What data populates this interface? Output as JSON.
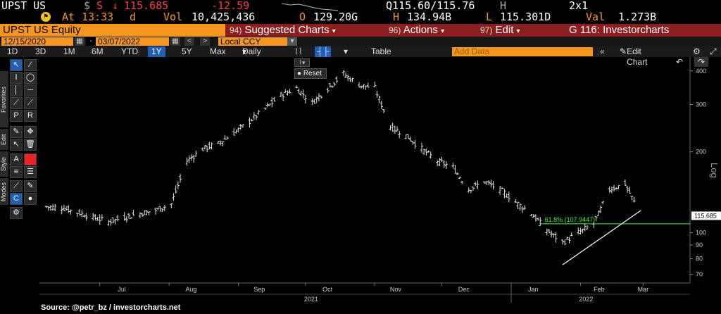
{
  "quote": {
    "ticker": "UPST US",
    "currency": "$",
    "source_code": "S",
    "arrow": "↓",
    "last": "115.685",
    "change": "-12.59",
    "bid_ask": "Q115.60/115.76",
    "bid_ask_suffix": "H",
    "size": "2x1",
    "time_label": "At",
    "time": "13:33",
    "time_suffix": "d",
    "vol_label": "Vol",
    "volume": "10,425,436",
    "open_label": "O",
    "open": "129.20G",
    "high_label": "H",
    "high": "134.94B",
    "low_label": "L",
    "low": "115.301D",
    "val_label": "Val",
    "val": "1.273B"
  },
  "titlebar": {
    "security": "UPST US Equity",
    "menu1_num": "94)",
    "menu1": "Suggested Charts",
    "menu2_num": "96)",
    "menu2": "Actions",
    "menu3_num": "97)",
    "menu3": "Edit",
    "function": "G 116: Investorcharts"
  },
  "daterow": {
    "start_date": "12/15/2020",
    "end_date": "03/07/2022",
    "currency_mode": "Local CCY"
  },
  "periods": {
    "items": [
      "1D",
      "3D",
      "1M",
      "6M",
      "YTD",
      "1Y",
      "5Y",
      "Max"
    ],
    "selected": "1Y",
    "frequency": "Daily",
    "table": "Table",
    "add_data_placeholder": "Add Data",
    "edit_chart": "Edit Chart"
  },
  "toolbar": {
    "favorites": "Favorites",
    "edit": "Edit",
    "style": "Style",
    "modes": "Modes"
  },
  "reset_label": "Reset",
  "source": "Source: @petr_bz / investorcharts.net",
  "colors": {
    "accent_orange": "#f5961e",
    "title_red": "#8b1f1f",
    "price_down": "#ff3b3b",
    "fib_green": "#33ff33",
    "selected_blue": "#1f5fb8"
  },
  "chart_data": {
    "type": "ohlc",
    "scale": "log",
    "ylabel": "Log",
    "ylim": [
      65,
      440
    ],
    "y_ticks": [
      70,
      80,
      90,
      100,
      200,
      300,
      400
    ],
    "month_labels": [
      "Jul",
      "Aug",
      "Sep",
      "Oct",
      "Nov",
      "Dec",
      "Jan",
      "Feb",
      "Mar"
    ],
    "year_labels": [
      {
        "year": "2021",
        "under": "Oct"
      },
      {
        "year": "2022",
        "under": "Feb"
      }
    ],
    "last_price": 115.685,
    "fib_label": "61.8% (107.9447)",
    "fib_level": 107.9447,
    "trendline": {
      "from": {
        "date": "2022-01-24",
        "value": 76
      },
      "to": {
        "date": "2022-02-28",
        "value": 121
      }
    },
    "weekly_closes": [
      {
        "date": "2021-06-07",
        "value": 125
      },
      {
        "date": "2021-06-14",
        "value": 124
      },
      {
        "date": "2021-06-21",
        "value": 119
      },
      {
        "date": "2021-06-28",
        "value": 114
      },
      {
        "date": "2021-07-05",
        "value": 110
      },
      {
        "date": "2021-07-12",
        "value": 114
      },
      {
        "date": "2021-07-19",
        "value": 118
      },
      {
        "date": "2021-07-26",
        "value": 121
      },
      {
        "date": "2021-08-02",
        "value": 128
      },
      {
        "date": "2021-08-09",
        "value": 185
      },
      {
        "date": "2021-08-16",
        "value": 205
      },
      {
        "date": "2021-08-23",
        "value": 215
      },
      {
        "date": "2021-08-30",
        "value": 235
      },
      {
        "date": "2021-09-06",
        "value": 260
      },
      {
        "date": "2021-09-13",
        "value": 290
      },
      {
        "date": "2021-09-20",
        "value": 325
      },
      {
        "date": "2021-09-27",
        "value": 345
      },
      {
        "date": "2021-10-04",
        "value": 305
      },
      {
        "date": "2021-10-11",
        "value": 345
      },
      {
        "date": "2021-10-18",
        "value": 390
      },
      {
        "date": "2021-10-25",
        "value": 355
      },
      {
        "date": "2021-11-01",
        "value": 345
      },
      {
        "date": "2021-11-08",
        "value": 248
      },
      {
        "date": "2021-11-15",
        "value": 230
      },
      {
        "date": "2021-11-22",
        "value": 205
      },
      {
        "date": "2021-11-29",
        "value": 185
      },
      {
        "date": "2021-12-06",
        "value": 175
      },
      {
        "date": "2021-12-13",
        "value": 145
      },
      {
        "date": "2021-12-20",
        "value": 155
      },
      {
        "date": "2021-12-27",
        "value": 145
      },
      {
        "date": "2022-01-03",
        "value": 130
      },
      {
        "date": "2022-01-10",
        "value": 118
      },
      {
        "date": "2022-01-17",
        "value": 102
      },
      {
        "date": "2022-01-24",
        "value": 92
      },
      {
        "date": "2022-01-31",
        "value": 100
      },
      {
        "date": "2022-02-07",
        "value": 108
      },
      {
        "date": "2022-02-14",
        "value": 145
      },
      {
        "date": "2022-02-21",
        "value": 152
      },
      {
        "date": "2022-02-28",
        "value": 115.685
      }
    ]
  }
}
